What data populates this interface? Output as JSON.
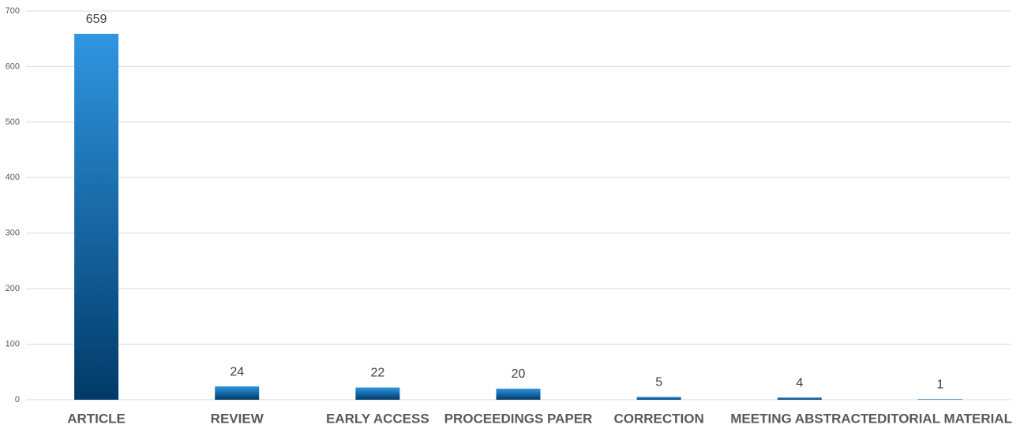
{
  "chart_data": {
    "type": "bar",
    "categories": [
      "ARTICLE",
      "REVIEW",
      "EARLY ACCESS",
      "PROCEEDINGS PAPER",
      "CORRECTION",
      "MEETING ABSTRACT",
      "EDITORIAL MATERIAL"
    ],
    "values": [
      659,
      24,
      22,
      20,
      5,
      4,
      1
    ],
    "colors": [
      "#2f96e1",
      "#013a68"
    ],
    "ylim": [
      0,
      700
    ],
    "yticks": [
      0,
      100,
      200,
      300,
      400,
      500,
      600,
      700
    ],
    "grid": true
  }
}
